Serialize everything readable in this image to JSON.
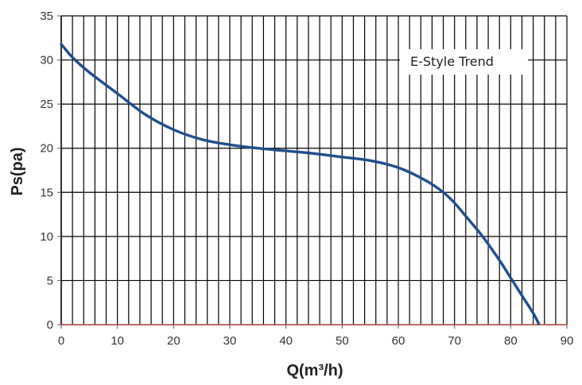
{
  "chart_data": {
    "type": "line",
    "title": "",
    "xlabel": "Q(m³/h)",
    "ylabel": "Ps(pa)",
    "xlim": [
      0,
      90
    ],
    "ylim": [
      0,
      35
    ],
    "x_ticks": [
      0,
      10,
      20,
      30,
      40,
      50,
      60,
      70,
      80,
      90
    ],
    "y_ticks": [
      0,
      5,
      10,
      15,
      20,
      25,
      30,
      35
    ],
    "grid": true,
    "legend_position": "top-right",
    "colors": {
      "series": "#1f4e8c",
      "zero_line": "#c0504d",
      "grid": "#000000"
    },
    "series": [
      {
        "name": "E-Style Trend",
        "x": [
          0,
          2,
          5,
          10,
          15,
          20,
          25,
          30,
          35,
          40,
          45,
          50,
          55,
          60,
          65,
          68,
          70,
          72,
          75,
          78,
          80,
          82,
          84,
          85
        ],
        "y": [
          31.8,
          30.3,
          28.6,
          26.2,
          23.8,
          22.1,
          21.0,
          20.4,
          20.0,
          19.7,
          19.4,
          19.0,
          18.6,
          17.8,
          16.3,
          15.0,
          13.8,
          12.3,
          10.0,
          7.3,
          5.3,
          3.3,
          1.3,
          0.1
        ]
      }
    ]
  }
}
